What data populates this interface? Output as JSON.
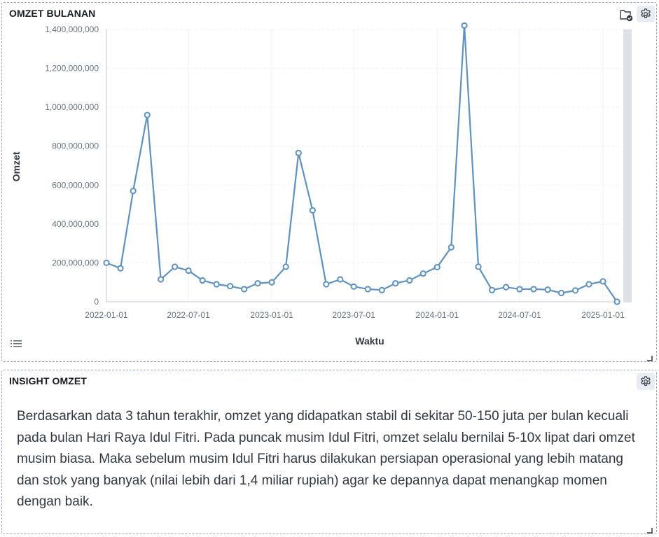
{
  "chart_panel": {
    "title": "OMZET BULANAN",
    "icons": [
      "folder-check-icon",
      "gear-icon",
      "list-icon",
      "resize-handle-icon"
    ]
  },
  "insight_panel": {
    "title": "INSIGHT OMZET",
    "text": "Berdasarkan data 3 tahun terakhir, omzet yang didapatkan stabil di sekitar 50-150 juta per bulan kecuali pada bulan Hari Raya Idul Fitri. Pada puncak musim Idul Fitri, omzet selalu bernilai 5-10x lipat dari omzet musim biasa. Maka sebelum musim Idul Fitri harus dilakukan persiapan operasional yang lebih matang dan stok yang banyak (nilai lebih dari 1,4 miliar rupiah) agar ke depannya dapat menangkap momen dengan baik.",
    "icons": [
      "gear-icon",
      "resize-handle-icon"
    ]
  },
  "chart_data": {
    "type": "line",
    "title": "OMZET BULANAN",
    "xlabel": "Waktu",
    "ylabel": "Omzet",
    "ylim": [
      0,
      1400000000
    ],
    "xlim": [
      "2022-01-01",
      "2025-01-01"
    ],
    "grid": true,
    "line_color": "#6092c0",
    "x_ticks": [
      "2022-01-01",
      "2022-07-01",
      "2023-01-01",
      "2023-07-01",
      "2024-01-01",
      "2024-07-01",
      "2025-01-01"
    ],
    "y_ticks": [
      "0",
      "200,000,000",
      "400,000,000",
      "600,000,000",
      "800,000,000",
      "1,000,000,000",
      "1,200,000,000",
      "1,400,000,000"
    ],
    "y_tick_values": [
      0,
      200000000,
      400000000,
      600000000,
      800000000,
      1000000000,
      1200000000,
      1400000000
    ],
    "x": [
      "2022-01-01",
      "2022-02-01",
      "2022-03-01",
      "2022-04-01",
      "2022-05-01",
      "2022-06-01",
      "2022-07-01",
      "2022-08-01",
      "2022-09-01",
      "2022-10-01",
      "2022-11-01",
      "2022-12-01",
      "2023-01-01",
      "2023-02-01",
      "2023-03-01",
      "2023-04-01",
      "2023-05-01",
      "2023-06-01",
      "2023-07-01",
      "2023-08-01",
      "2023-09-01",
      "2023-10-01",
      "2023-11-01",
      "2023-12-01",
      "2024-01-01",
      "2024-02-01",
      "2024-03-01",
      "2024-04-01",
      "2024-05-01",
      "2024-06-01",
      "2024-07-01",
      "2024-08-01",
      "2024-09-01",
      "2024-10-01",
      "2024-11-01",
      "2024-12-01",
      "2025-01-01",
      "2025-02-01"
    ],
    "values": [
      200000000,
      172000000,
      570000000,
      960000000,
      115000000,
      180000000,
      160000000,
      110000000,
      90000000,
      80000000,
      65000000,
      95000000,
      100000000,
      180000000,
      765000000,
      470000000,
      90000000,
      115000000,
      78000000,
      65000000,
      60000000,
      95000000,
      110000000,
      145000000,
      178000000,
      280000000,
      1420000000,
      180000000,
      60000000,
      75000000,
      65000000,
      65000000,
      62000000,
      45000000,
      58000000,
      90000000,
      105000000,
      0
    ]
  }
}
